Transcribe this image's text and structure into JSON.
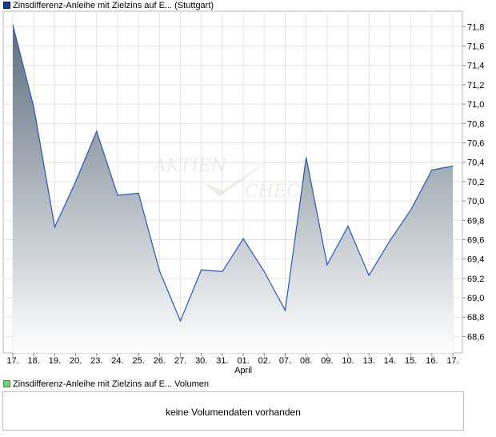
{
  "legends": {
    "price": {
      "text": "Zinsdifferenz-Anleihe mit Zielzins auf E... (Stuttgart)",
      "color": "#1a3a8a"
    },
    "volume": {
      "text": "Zinsdifferenz-Anleihe mit Zielzins auf E... Volumen",
      "color": "#7ad07a"
    }
  },
  "volume_panel": {
    "message": "keine Volumendaten vorhanden"
  },
  "watermark": {
    "text_1": "AKTIEN",
    "text_2": "CHECK"
  },
  "chart_data": {
    "type": "area",
    "title": "",
    "xlabel": "",
    "ylabel": "",
    "ylim": [
      68.43,
      71.96
    ],
    "y_ticks": [
      "71,8",
      "71,6",
      "71,4",
      "71,2",
      "71,0",
      "70,8",
      "70,6",
      "70,4",
      "70,2",
      "70,0",
      "69,8",
      "69,6",
      "69,4",
      "69,2",
      "69,0",
      "68,8",
      "68,6"
    ],
    "y_tick_values": [
      71.8,
      71.6,
      71.4,
      71.2,
      71.0,
      70.8,
      70.6,
      70.4,
      70.2,
      70.0,
      69.8,
      69.6,
      69.4,
      69.2,
      69.0,
      68.8,
      68.6
    ],
    "x_tick_labels": [
      "17.",
      "18.",
      "19.",
      "20.",
      "23.",
      "24.",
      "25.",
      "26.",
      "27.",
      "30.",
      "31.",
      "01.",
      "02.",
      "07.",
      "08.",
      "09.",
      "10.",
      "13.",
      "14.",
      "15.",
      "16.",
      "17."
    ],
    "x_sublabel": {
      "under_index": 11,
      "text": "April"
    },
    "series": [
      {
        "values": [
          71.82,
          70.97,
          69.73,
          70.2,
          70.72,
          70.06,
          70.08,
          69.28,
          68.76,
          69.29,
          69.27,
          69.61,
          69.27,
          68.87,
          70.45,
          69.34,
          69.74,
          69.23,
          69.59,
          69.91,
          70.32,
          70.36
        ]
      }
    ],
    "line_color": "#2a55b8",
    "fill_top_color": "#5d6e7e",
    "fill_bottom_color": "#ffffff",
    "grid": true,
    "y_axis_side": "right"
  }
}
